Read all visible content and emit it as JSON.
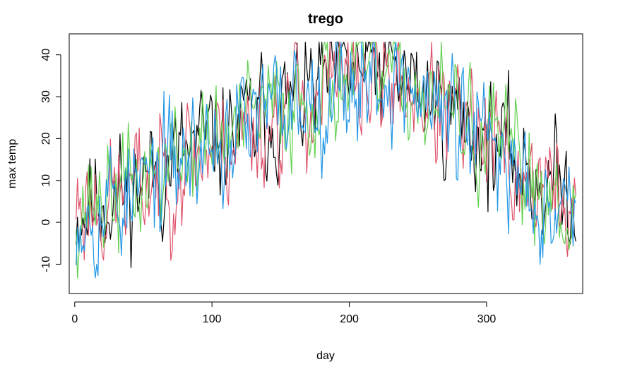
{
  "chart_data": {
    "type": "line",
    "title": "trego",
    "xlabel": "day",
    "ylabel": "max temp",
    "xlim": [
      -4,
      370
    ],
    "ylim": [
      -17,
      45
    ],
    "x_ticks": [
      0,
      100,
      200,
      300
    ],
    "y_ticks": [
      -10,
      0,
      10,
      20,
      30,
      40
    ],
    "x_tick_labels": [
      "0",
      "100",
      "200",
      "300"
    ],
    "y_tick_labels": [
      "-10",
      "0",
      "10",
      "20",
      "30",
      "40"
    ],
    "grid": false,
    "legend": "none",
    "x": {
      "from": 1,
      "to": 365,
      "step": 1
    },
    "series": [
      {
        "color": "#000000",
        "keypoints": [
          [
            1,
            3
          ],
          [
            20,
            6
          ],
          [
            40,
            8
          ],
          [
            60,
            12
          ],
          [
            80,
            16
          ],
          [
            100,
            19
          ],
          [
            120,
            22
          ],
          [
            140,
            25
          ],
          [
            160,
            29
          ],
          [
            180,
            33
          ],
          [
            200,
            36
          ],
          [
            220,
            36
          ],
          [
            240,
            34
          ],
          [
            260,
            30
          ],
          [
            280,
            25
          ],
          [
            300,
            20
          ],
          [
            320,
            15
          ],
          [
            340,
            10
          ],
          [
            365,
            6
          ]
        ],
        "noise": 6.5,
        "seed": 11
      },
      {
        "color": "#DF536B",
        "keypoints": [
          [
            1,
            5
          ],
          [
            20,
            5
          ],
          [
            40,
            7
          ],
          [
            60,
            11
          ],
          [
            80,
            15
          ],
          [
            100,
            18
          ],
          [
            120,
            21
          ],
          [
            140,
            24
          ],
          [
            160,
            28
          ],
          [
            180,
            31
          ],
          [
            200,
            33
          ],
          [
            220,
            34
          ],
          [
            240,
            33
          ],
          [
            260,
            29
          ],
          [
            280,
            23
          ],
          [
            300,
            18
          ],
          [
            320,
            13
          ],
          [
            340,
            8
          ],
          [
            365,
            5
          ]
        ],
        "noise": 6.8,
        "seed": 23
      },
      {
        "color": "#61D04F",
        "keypoints": [
          [
            1,
            4
          ],
          [
            20,
            6
          ],
          [
            40,
            8
          ],
          [
            60,
            12
          ],
          [
            80,
            16
          ],
          [
            100,
            19
          ],
          [
            120,
            22
          ],
          [
            140,
            26
          ],
          [
            160,
            29
          ],
          [
            180,
            33
          ],
          [
            200,
            35
          ],
          [
            220,
            35
          ],
          [
            240,
            33
          ],
          [
            260,
            29
          ],
          [
            280,
            24
          ],
          [
            300,
            19
          ],
          [
            320,
            14
          ],
          [
            340,
            9
          ],
          [
            365,
            6
          ]
        ],
        "noise": 6.5,
        "seed": 37
      },
      {
        "color": "#2297E6",
        "keypoints": [
          [
            1,
            4
          ],
          [
            20,
            5
          ],
          [
            40,
            7
          ],
          [
            60,
            11
          ],
          [
            80,
            15
          ],
          [
            100,
            19
          ],
          [
            120,
            22
          ],
          [
            140,
            25
          ],
          [
            160,
            29
          ],
          [
            180,
            32
          ],
          [
            200,
            34
          ],
          [
            220,
            35
          ],
          [
            240,
            33
          ],
          [
            260,
            28
          ],
          [
            280,
            23
          ],
          [
            300,
            18
          ],
          [
            320,
            13
          ],
          [
            340,
            8
          ],
          [
            365,
            5
          ]
        ],
        "noise": 6.8,
        "seed": 53
      }
    ]
  }
}
